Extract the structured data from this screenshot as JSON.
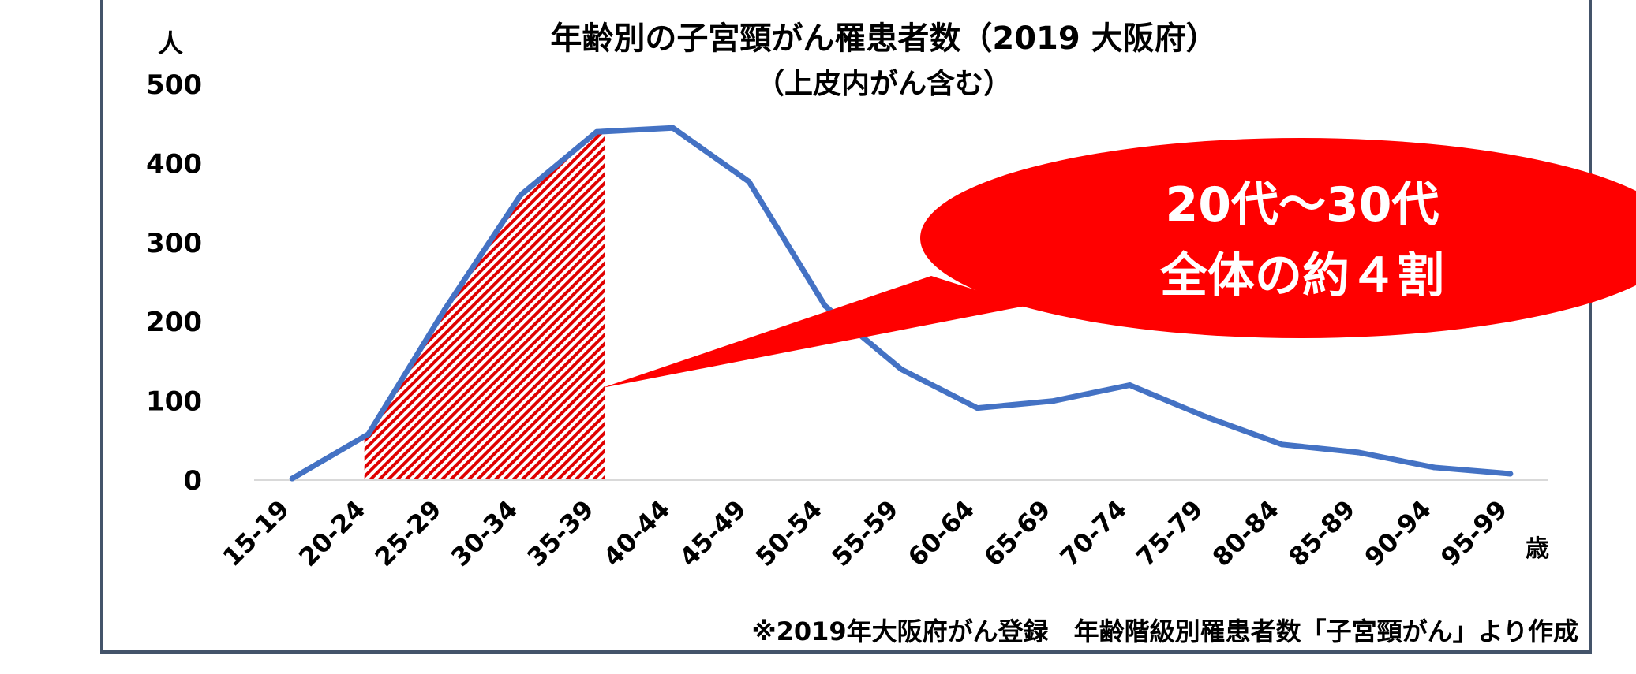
{
  "chart_data": {
    "type": "line",
    "title": "年齢別の子宮頸がん罹患者数（2019 大阪府）",
    "subtitle": "（上皮内がん含む）",
    "ylabel": "人",
    "xlabel": "歳",
    "ylim": [
      0,
      500
    ],
    "yticks": [
      "0",
      "100",
      "200",
      "300",
      "400",
      "500"
    ],
    "categories": [
      "15-19",
      "20-24",
      "25-29",
      "30-34",
      "35-39",
      "40-44",
      "45-49",
      "50-54",
      "55-59",
      "60-64",
      "65-69",
      "70-74",
      "75-79",
      "80-84",
      "85-89",
      "90-94",
      "95-99"
    ],
    "series": [
      {
        "values": [
          2,
          58,
          215,
          360,
          440,
          445,
          377,
          220,
          140,
          91,
          100,
          120,
          80,
          45,
          35,
          16,
          8
        ]
      }
    ],
    "highlight_range": [
      "20-24",
      "35-39"
    ],
    "grid": false,
    "colors": {
      "line": "#4472c4",
      "callout": "#ff0000",
      "hatch": "#e00000"
    },
    "callout": {
      "line1": "20代～30代",
      "line2": "全体の約４割"
    },
    "source_note": "※2019年大阪府がん登録　年齢階級別罹患者数「子宮頸がん」より作成"
  }
}
